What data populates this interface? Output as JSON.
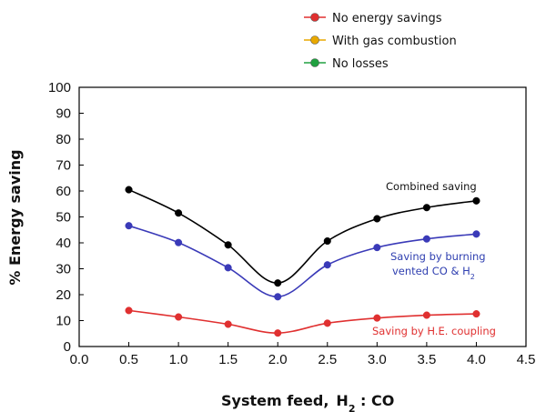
{
  "chart_data": {
    "type": "line",
    "xlabel": "System feed,",
    "xlabel_formula": {
      "h": "H",
      "sub": "2",
      "rest": " : CO"
    },
    "ylabel": "% Energy saving",
    "xlim": [
      0.0,
      4.5
    ],
    "ylim": [
      0,
      100
    ],
    "x_ticks": [
      "0.0",
      "0.5",
      "1.0",
      "1.5",
      "2.0",
      "2.5",
      "3.0",
      "3.5",
      "4.0",
      "4.5"
    ],
    "y_ticks": [
      "0",
      "10",
      "20",
      "30",
      "40",
      "50",
      "60",
      "70",
      "80",
      "90",
      "100"
    ],
    "grid": false,
    "legend_position": "top",
    "legend": [
      {
        "label": "No energy savings",
        "color": "#e03030"
      },
      {
        "label": "With gas combustion",
        "color": "#e8a800"
      },
      {
        "label": "No losses",
        "color": "#20a040"
      }
    ],
    "series": [
      {
        "color": "#000000",
        "x": [
          0.5,
          1.0,
          1.5,
          2.0,
          2.5,
          3.0,
          3.5,
          4.0
        ],
        "values": [
          60.5,
          51.5,
          39.2,
          24.5,
          40.7,
          49.3,
          53.6,
          56.2
        ]
      },
      {
        "color": "#3a3ab8",
        "x": [
          0.5,
          1.0,
          1.5,
          2.0,
          2.5,
          3.0,
          3.5,
          4.0
        ],
        "values": [
          46.6,
          40.1,
          30.4,
          19.2,
          31.5,
          38.2,
          41.5,
          43.4
        ]
      },
      {
        "color": "#e03030",
        "x": [
          0.5,
          1.0,
          1.5,
          2.0,
          2.5,
          3.0,
          3.5,
          4.0
        ],
        "values": [
          13.9,
          11.4,
          8.6,
          5.2,
          9.0,
          11.0,
          12.1,
          12.6
        ]
      }
    ],
    "annotations": [
      {
        "text": "Combined saving",
        "color": "#111111"
      },
      {
        "text": "Saving by burning",
        "color": "#2f3fb0"
      },
      {
        "text": "vented CO & H",
        "sub": "2",
        "color": "#2f3fb0"
      },
      {
        "text": "Saving by H.E. coupling",
        "color": "#e03030"
      }
    ]
  }
}
